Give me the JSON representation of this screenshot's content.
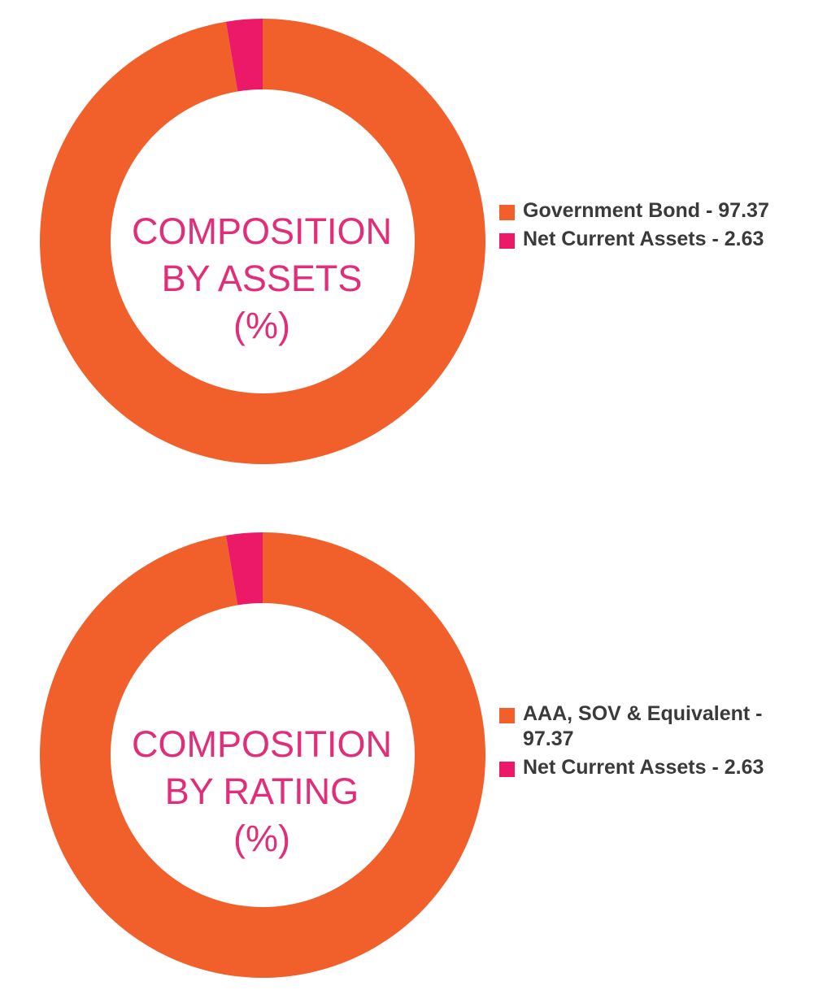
{
  "colors": {
    "orange": "#f15f2a",
    "pink": "#ec1868",
    "title_pink": "#e22d78"
  },
  "chart_data": [
    {
      "type": "pie",
      "donut": true,
      "title_lines": [
        "COMPOSITION",
        "BY ASSETS",
        "(%)"
      ],
      "legend_position": "right",
      "slices": [
        {
          "label": "Government Bond - 97.37",
          "value": 97.37,
          "color": "#f15f2a"
        },
        {
          "label": "Net Current Assets - 2.63",
          "value": 2.63,
          "color": "#ec1868"
        }
      ]
    },
    {
      "type": "pie",
      "donut": true,
      "title_lines": [
        "COMPOSITION",
        "BY RATING",
        "(%)"
      ],
      "legend_position": "right",
      "slices": [
        {
          "label": "AAA, SOV & Equivalent - 97.37",
          "value": 97.37,
          "color": "#f15f2a"
        },
        {
          "label": "Net Current Assets - 2.63",
          "value": 2.63,
          "color": "#ec1868"
        }
      ]
    }
  ]
}
